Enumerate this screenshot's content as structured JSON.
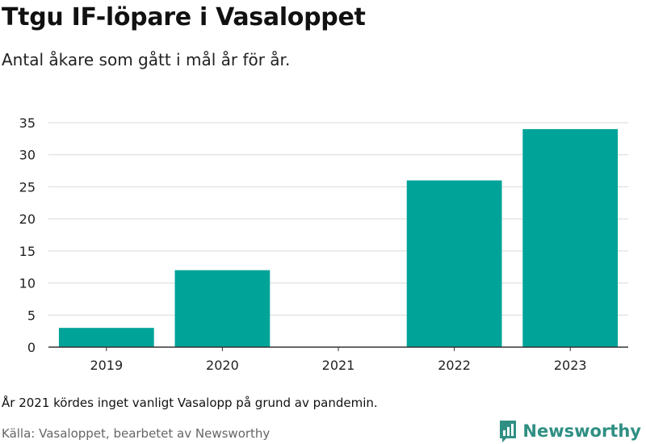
{
  "title": "Ttgu IF-löpare i Vasaloppet",
  "subtitle": "Antal åkare som gått i mål år för år.",
  "note": "År 2021 kördes inget vanligt Vasalopp på grund av pandemin.",
  "source": "Källa: Vasaloppet, bearbetet av Newsworthy",
  "brand": {
    "name": "Newsworthy",
    "icon": "newsworthy-logo-icon",
    "color": "#2f8f83"
  },
  "chart_data": {
    "type": "bar",
    "categories": [
      "2019",
      "2020",
      "2021",
      "2022",
      "2023"
    ],
    "values": [
      3,
      12,
      0,
      26,
      34
    ],
    "ylim": [
      0,
      35
    ],
    "yticks": [
      0,
      5,
      10,
      15,
      20,
      25,
      30,
      35
    ],
    "grid": true,
    "bar_color": "#00a398"
  }
}
